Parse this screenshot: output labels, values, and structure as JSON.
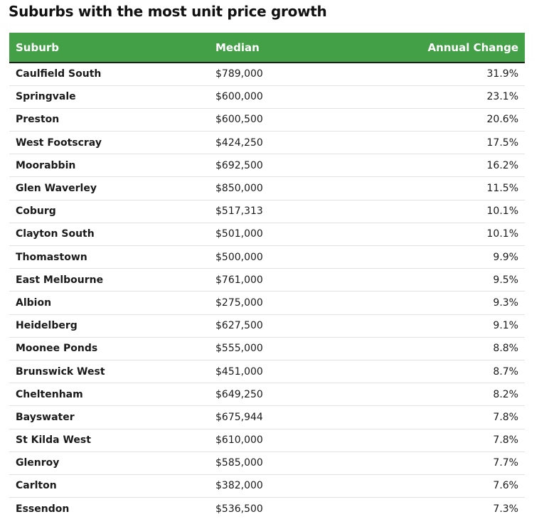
{
  "title": "Suburbs with the most unit price growth",
  "table": {
    "headers": [
      "Suburb",
      "Median",
      "Annual Change"
    ],
    "header_color": "#43a047",
    "rows": [
      [
        "Caulfield South",
        "$789,000",
        "31.9%"
      ],
      [
        "Springvale",
        "$600,000",
        "23.1%"
      ],
      [
        "Preston",
        "$600,500",
        "20.6%"
      ],
      [
        "West Footscray",
        "$424,250",
        "17.5%"
      ],
      [
        "Moorabbin",
        "$692,500",
        "16.2%"
      ],
      [
        "Glen Waverley",
        "$850,000",
        "11.5%"
      ],
      [
        "Coburg",
        "$517,313",
        "10.1%"
      ],
      [
        "Clayton South",
        "$501,000",
        "10.1%"
      ],
      [
        "Thomastown",
        "$500,000",
        "9.9%"
      ],
      [
        "East Melbourne",
        "$761,000",
        "9.5%"
      ],
      [
        "Albion",
        "$275,000",
        "9.3%"
      ],
      [
        "Heidelberg",
        "$627,500",
        "9.1%"
      ],
      [
        "Moonee Ponds",
        "$555,000",
        "8.8%"
      ],
      [
        "Brunswick West",
        "$451,000",
        "8.7%"
      ],
      [
        "Cheltenham",
        "$649,250",
        "8.2%"
      ],
      [
        "Bayswater",
        "$675,944",
        "7.8%"
      ],
      [
        "St Kilda West",
        "$610,000",
        "7.8%"
      ],
      [
        "Glenroy",
        "$585,000",
        "7.7%"
      ],
      [
        "Carlton",
        "$382,000",
        "7.6%"
      ],
      [
        "Essendon",
        "$536,500",
        "7.3%"
      ]
    ]
  }
}
